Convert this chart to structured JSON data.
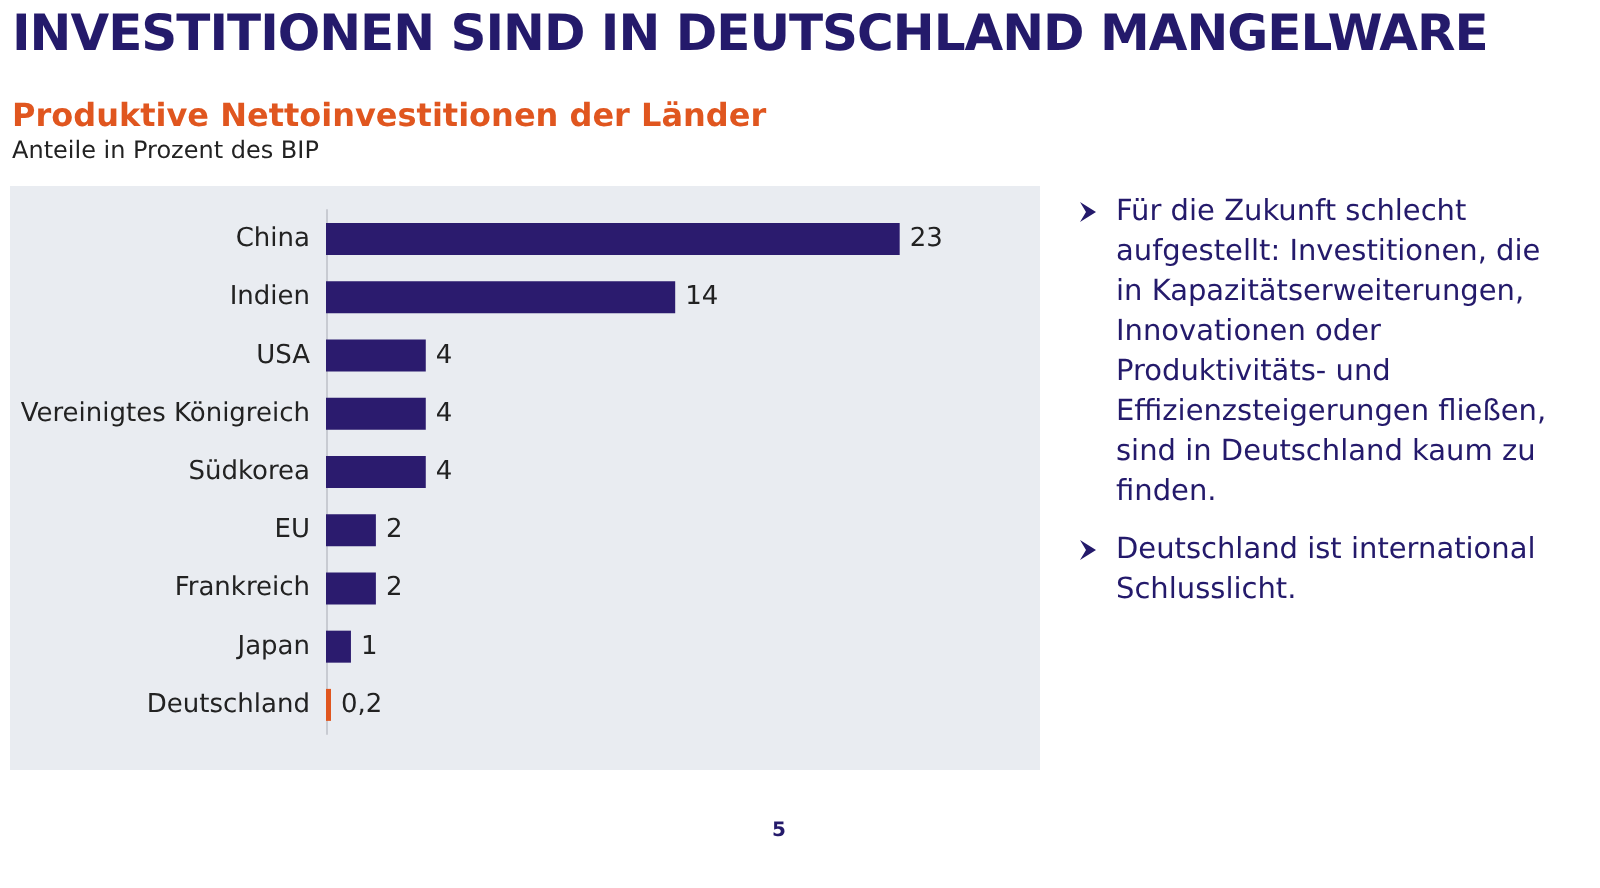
{
  "chart_data": {
    "type": "bar",
    "orientation": "horizontal",
    "title": "INVESTITIONEN SIND IN DEUTSCHLAND MANGELWARE",
    "subtitle": "Produktive Nettoinvestitionen der Länder",
    "xlabel": "Anteile in Prozent des BIP",
    "categories": [
      "China",
      "Indien",
      "USA",
      "Vereinigtes Königreich",
      "Südkorea",
      "EU",
      "Frankreich",
      "Japan",
      "Deutschland"
    ],
    "values": [
      23,
      14,
      4,
      4,
      4,
      2,
      2,
      1,
      0.2
    ],
    "colors": [
      "#2b1b6e",
      "#2b1b6e",
      "#2b1b6e",
      "#2b1b6e",
      "#2b1b6e",
      "#2b1b6e",
      "#2b1b6e",
      "#2b1b6e",
      "#e0561f"
    ],
    "value_labels": [
      "23",
      "14",
      "4",
      "4",
      "4",
      "2",
      "2",
      "1",
      "0,2"
    ],
    "annotations": [
      "Für die Zukunft schlecht aufgestellt: Investitionen, die in Kapazitätserweiterungen, Innovationen oder Produktivitäts- und Effizienzsteigerungen fließen, sind in Deutschland kaum zu finden.",
      "Deutschland ist international Schlusslicht.",
      "5"
    ]
  }
}
